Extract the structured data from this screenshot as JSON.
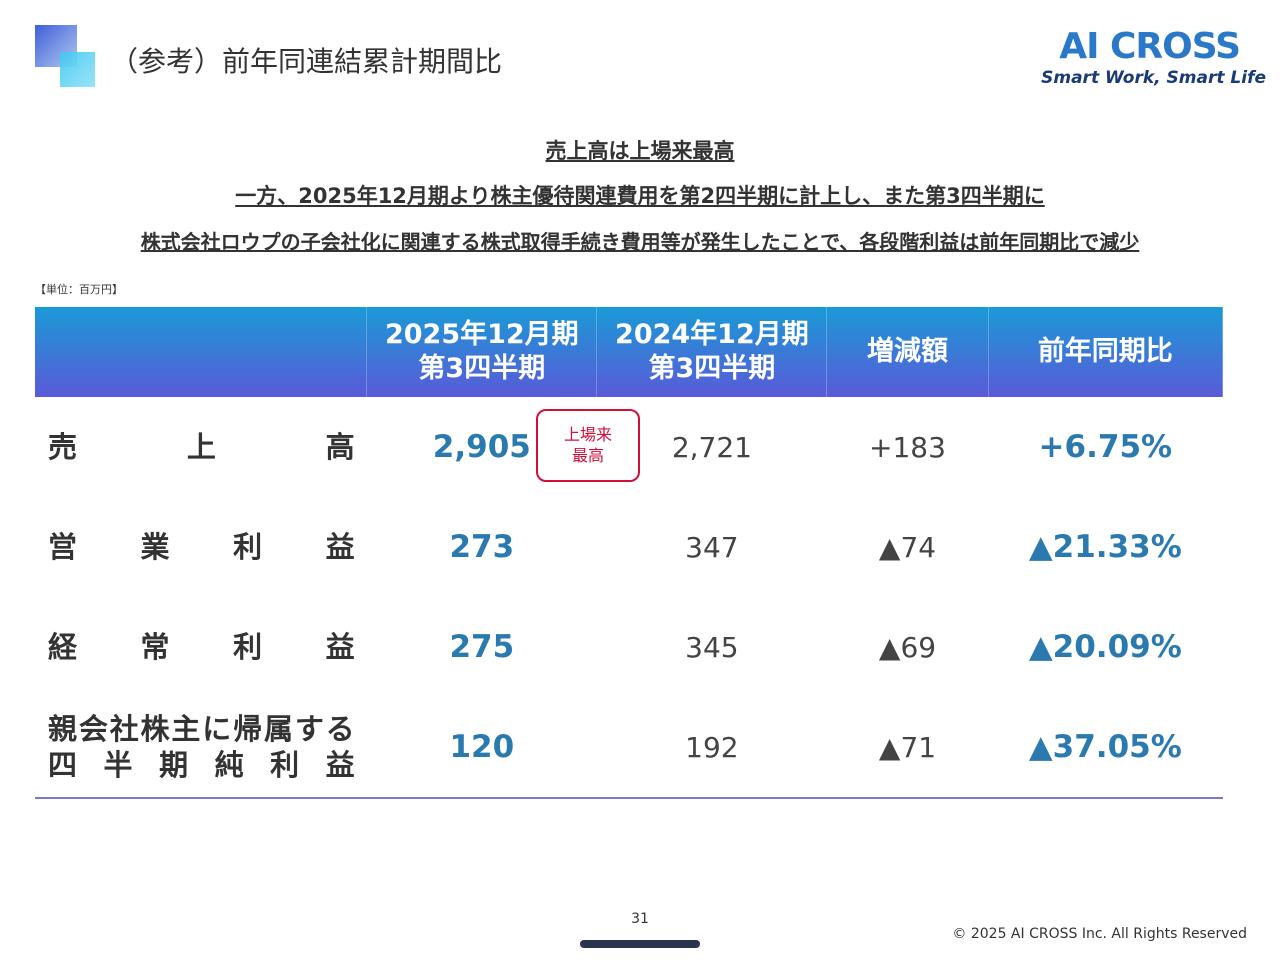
{
  "header": {
    "title": "（参考）前年同連結累計期間比",
    "logo": "AI CROSS",
    "tagline": "Smart Work, Smart Life"
  },
  "highlights": [
    "売上高は上場来最高",
    "一方、2025年12月期より株主優待関連費用を第2四半期に計上し、また第3四半期に",
    "株式会社ロウプの子会社化に関連する株式取得手続き費用等が発生したことで、各段階利益は前年同期比で減少"
  ],
  "unit": "【単位：百万円】",
  "table": {
    "columns": [
      [
        "2025年12月期",
        "第3四半期"
      ],
      [
        "2024年12月期",
        "第3四半期"
      ],
      [
        "増減額"
      ],
      [
        "前年同期比"
      ]
    ],
    "rows": [
      {
        "label": [
          "売上高"
        ],
        "cells": [
          "2,905",
          "2,721",
          "+183",
          "+6.75%"
        ]
      },
      {
        "label": [
          "営業利益"
        ],
        "cells": [
          "273",
          "347",
          "▲74",
          "▲21.33%"
        ]
      },
      {
        "label": [
          "経常利益"
        ],
        "cells": [
          "275",
          "345",
          "▲69",
          "▲20.09%"
        ]
      },
      {
        "label": [
          "親会社株主に帰属する",
          "四半期純利益"
        ],
        "cells": [
          "120",
          "192",
          "▲71",
          "▲37.05%"
        ]
      }
    ]
  },
  "badge": [
    "上場来",
    "最高"
  ],
  "footer": {
    "page": "31",
    "copyright": "© 2025 AI CROSS Inc. All Rights Reserved"
  }
}
